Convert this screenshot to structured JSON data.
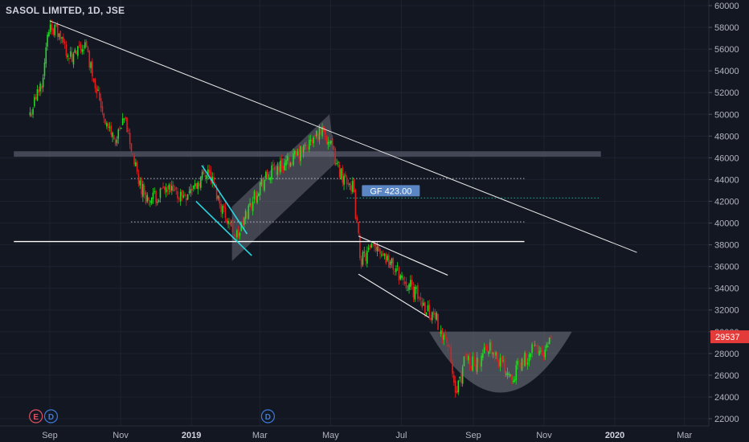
{
  "header": {
    "title": "SASOL LIMITED, 1D, JSE"
  },
  "colors": {
    "background": "#131722",
    "up_candle": "#26d926",
    "down_candle": "#e01f1f",
    "trendline": "#e8e8e8",
    "support_line": "#ffffff",
    "channel_fill": "#7c7f88",
    "flag_lines": "#29d6e0",
    "gap_line": "#26a69a",
    "price_badge": "#e33a3a",
    "gap_label_bg": "#5a86c4",
    "event_e": "#e05263",
    "event_d": "#3d7bd9"
  },
  "chart_data": {
    "type": "candlestick",
    "symbol": "SASOL LIMITED",
    "interval": "1D",
    "exchange": "JSE",
    "y_ticks": [
      22000,
      24000,
      26000,
      28000,
      30000,
      32000,
      34000,
      36000,
      38000,
      40000,
      42000,
      44000,
      46000,
      48000,
      50000,
      52000,
      54000,
      56000,
      58000,
      60000
    ],
    "ylim": [
      21300,
      60500
    ],
    "x_ticks": [
      "Sep",
      "Nov",
      "2019",
      "Mar",
      "May",
      "Jul",
      "Sep",
      "Nov",
      "2020",
      "Mar"
    ],
    "x_ticks_bold": [
      "2019",
      "2020"
    ],
    "last_price": 29537,
    "gap_annotation": {
      "label": "GF 423.00",
      "price": 42300
    },
    "events": [
      {
        "label": "E",
        "kind": "earnings"
      },
      {
        "label": "D",
        "kind": "dividend"
      },
      {
        "label": "D",
        "kind": "dividend"
      }
    ],
    "price_path": [
      [
        "2018-08-15",
        50000
      ],
      [
        "2018-08-25",
        53000
      ],
      [
        "2018-09-01",
        58500
      ],
      [
        "2018-09-10",
        57000
      ],
      [
        "2018-09-20",
        55000
      ],
      [
        "2018-10-01",
        56500
      ],
      [
        "2018-10-10",
        53000
      ],
      [
        "2018-10-20",
        49000
      ],
      [
        "2018-10-28",
        47500
      ],
      [
        "2018-11-05",
        49500
      ],
      [
        "2018-11-10",
        47000
      ],
      [
        "2018-11-16",
        44000
      ],
      [
        "2018-11-25",
        42000
      ],
      [
        "2018-12-10",
        43000
      ],
      [
        "2018-12-25",
        42500
      ],
      [
        "2019-01-05",
        43500
      ],
      [
        "2019-01-15",
        45000
      ],
      [
        "2019-01-25",
        42000
      ],
      [
        "2019-02-05",
        39500
      ],
      [
        "2019-02-10",
        38700
      ],
      [
        "2019-02-20",
        41500
      ],
      [
        "2019-03-01",
        43500
      ],
      [
        "2019-03-15",
        45000
      ],
      [
        "2019-04-01",
        46000
      ],
      [
        "2019-04-15",
        47500
      ],
      [
        "2019-04-25",
        48800
      ],
      [
        "2019-05-01",
        47000
      ],
      [
        "2019-05-10",
        44500
      ],
      [
        "2019-05-20",
        43500
      ],
      [
        "2019-05-27",
        36500
      ],
      [
        "2019-06-10",
        38000
      ],
      [
        "2019-06-20",
        36500
      ],
      [
        "2019-07-01",
        35000
      ],
      [
        "2019-07-10",
        34000
      ],
      [
        "2019-07-20",
        32500
      ],
      [
        "2019-08-01",
        31000
      ],
      [
        "2019-08-10",
        29000
      ],
      [
        "2019-08-17",
        24000
      ],
      [
        "2019-08-25",
        27500
      ],
      [
        "2019-09-05",
        27000
      ],
      [
        "2019-09-15",
        29000
      ],
      [
        "2019-09-25",
        27000
      ],
      [
        "2019-10-05",
        26000
      ],
      [
        "2019-10-15",
        27500
      ],
      [
        "2019-10-25",
        28500
      ],
      [
        "2019-11-01",
        27500
      ],
      [
        "2019-11-07",
        29537
      ]
    ],
    "drawings": {
      "resistance_trendline": {
        "from": [
          "2018-09-01",
          58600
        ],
        "to": [
          "2020-01-20",
          37300
        ]
      },
      "resistance_zone": {
        "from_date": "2018-08-01",
        "to_date": "2019-12-20",
        "low": 46100,
        "high": 46600
      },
      "support_line": {
        "from_date": "2018-08-01",
        "to_date": "2019-10-15",
        "price": 38300
      },
      "dotted_levels": [
        {
          "from_date": "2018-11-10",
          "to_date": "2019-10-15",
          "price": 44100
        },
        {
          "from_date": "2018-11-10",
          "to_date": "2019-10-15",
          "price": 40100
        }
      ],
      "gap_level": {
        "from_date": "2019-05-15",
        "to_date": "2019-12-20",
        "price": 42300
      },
      "rising_channel": [
        [
          "2019-02-05",
          41500
        ],
        [
          "2019-04-30",
          50000
        ],
        [
          "2019-05-05",
          45500
        ],
        [
          "2019-02-05",
          36500
        ]
      ],
      "bull_flag_lines": [
        {
          "from": [
            "2019-01-10",
            45300
          ],
          "to": [
            "2019-02-18",
            39000
          ]
        },
        {
          "from": [
            "2019-01-05",
            42000
          ],
          "to": [
            "2019-02-22",
            37000
          ]
        }
      ],
      "descending_channel_lines": [
        {
          "from": [
            "2019-05-25",
            38800
          ],
          "to": [
            "2019-08-10",
            35200
          ]
        },
        {
          "from": [
            "2019-05-25",
            35300
          ],
          "to": [
            "2019-07-25",
            31300
          ]
        }
      ],
      "cup_pattern": {
        "from_date": "2019-07-25",
        "to_date": "2019-11-25",
        "rim": 30000,
        "bottom": 24400
      }
    }
  }
}
